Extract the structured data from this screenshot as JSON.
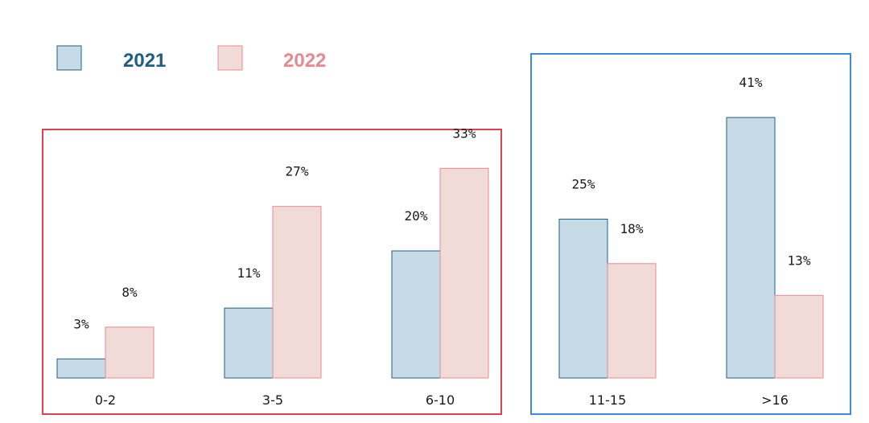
{
  "chart_data": {
    "type": "bar",
    "categories": [
      "0-2",
      "3-5",
      "6-10",
      "11-15",
      ">16"
    ],
    "series": [
      {
        "name": "2021",
        "values": [
          3,
          11,
          20,
          25,
          41
        ],
        "labels": [
          "3%",
          "11%",
          "20%",
          "25%",
          "41%"
        ]
      },
      {
        "name": "2022",
        "values": [
          8,
          27,
          33,
          18,
          13
        ],
        "labels": [
          "8%",
          "27%",
          "33%",
          "18%",
          "13%"
        ]
      }
    ],
    "unit": "%",
    "groups": [
      {
        "categories": [
          "0-2",
          "3-5",
          "6-10"
        ],
        "frame_color": "#e0414f"
      },
      {
        "categories": [
          "11-15",
          ">16"
        ],
        "frame_color": "#3b8be0"
      }
    ],
    "legend_position": "top-left",
    "grid": false
  },
  "colors": {
    "series_2021_fill": "#c6dbe6",
    "series_2021_stroke": "#1f5f85",
    "series_2021_text": "#1f5f85",
    "series_2022_fill": "#f0dbd9",
    "series_2022_stroke": "#e8898f",
    "series_2022_text": "#e8898f"
  }
}
